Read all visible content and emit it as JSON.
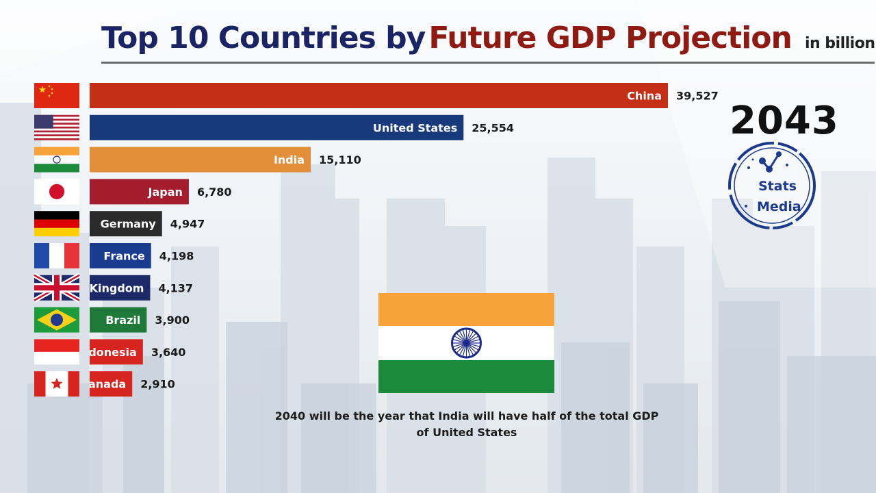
{
  "title": {
    "part1": "Top 10 Countries by",
    "part2": "Future GDP Projection",
    "unit": "in billion usd"
  },
  "year": "2043",
  "logo": {
    "line1": "Stats",
    "line2": "Media"
  },
  "caption": "2040 will be the year that India will have half of the total GDP of United States",
  "colors": {
    "title_dark": "#1a2364",
    "title_red": "#8f1a12",
    "China": "#c42f16",
    "United States": "#183a7d",
    "India": "#e38f3a",
    "Japan": "#a31d2e",
    "Germany": "#2b2b2b",
    "France": "#1a3c8f",
    "United Kingdom": "#1d2a6a",
    "Brazil": "#1f7a3a",
    "Indonesia": "#d8241e",
    "Canada": "#d8241e"
  },
  "chart_data": {
    "type": "bar",
    "orientation": "horizontal",
    "title": "Top 10 Countries by Future GDP Projection",
    "unit": "in billion usd",
    "categories": [
      "China",
      "United States",
      "India",
      "Japan",
      "Germany",
      "France",
      "United Kingdom",
      "Brazil",
      "Indonesia",
      "Canada"
    ],
    "display_labels": [
      "China",
      "United States",
      "India",
      "Japan",
      "Germany",
      "France",
      "Kingdom",
      "Brazil",
      "ndonesia",
      "anada"
    ],
    "value_labels": [
      "39,527",
      "25,554",
      "15,110",
      "6,780",
      "4,947",
      "4,198",
      "4,137",
      "3,900",
      "3,640",
      "2,910"
    ],
    "values": [
      39527,
      25554,
      15110,
      6780,
      4947,
      4198,
      4137,
      3900,
      3640,
      2910
    ],
    "flags": [
      "china-flag",
      "usa-flag",
      "india-flag",
      "japan-flag",
      "germany-flag",
      "france-flag",
      "uk-flag",
      "brazil-flag",
      "indonesia-flag",
      "canada-flag"
    ],
    "xlim": [
      0,
      39527
    ],
    "grid": false,
    "legend": "none"
  }
}
